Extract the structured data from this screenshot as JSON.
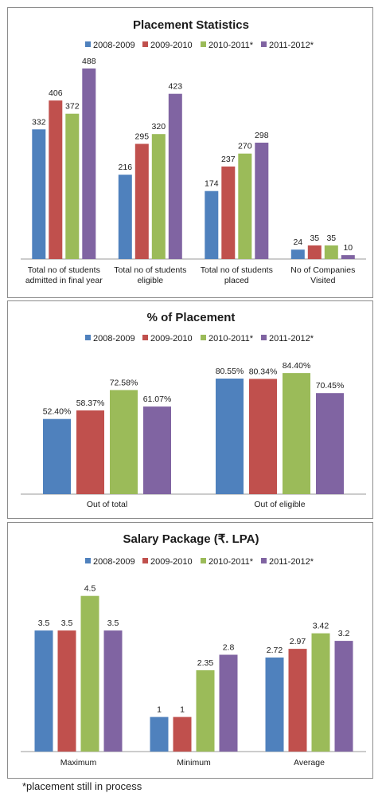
{
  "colors": [
    "#4f81bd",
    "#c0504d",
    "#9bbb59",
    "#8064a2"
  ],
  "footnote": "*placement still in process",
  "chart_data": [
    {
      "type": "bar",
      "title": "Placement Statistics",
      "legend_position": "top",
      "series": [
        {
          "name": "2008-2009",
          "values": [
            332,
            216,
            174,
            24
          ]
        },
        {
          "name": "2009-2010",
          "values": [
            406,
            295,
            237,
            35
          ]
        },
        {
          "name": "2010-2011*",
          "values": [
            372,
            320,
            270,
            35
          ]
        },
        {
          "name": "2011-2012*",
          "values": [
            488,
            423,
            298,
            10
          ]
        }
      ],
      "categories": [
        [
          "Total no of students",
          "admitted in final year"
        ],
        [
          "Total no of students",
          "eligible"
        ],
        [
          "Total no of students",
          "placed"
        ],
        [
          "No of Companies",
          "Visited"
        ]
      ],
      "labels": [
        [
          "332",
          "216",
          "174",
          "24"
        ],
        [
          "406",
          "295",
          "237",
          "35"
        ],
        [
          "372",
          "320",
          "270",
          "35"
        ],
        [
          "488",
          "423",
          "298",
          "10"
        ]
      ],
      "ylim": [
        0,
        500
      ],
      "grid": false
    },
    {
      "type": "bar",
      "title": "% of Placement",
      "legend_position": "top",
      "series": [
        {
          "name": "2008-2009",
          "values": [
            52.4,
            80.55
          ]
        },
        {
          "name": "2009-2010",
          "values": [
            58.37,
            80.34
          ]
        },
        {
          "name": "2010-2011*",
          "values": [
            72.58,
            84.4
          ]
        },
        {
          "name": "2011-2012*",
          "values": [
            61.07,
            70.45
          ]
        }
      ],
      "categories": [
        [
          "Out of total"
        ],
        [
          "Out of eligible"
        ]
      ],
      "labels": [
        [
          "52.40%",
          "80.55%"
        ],
        [
          "58.37%",
          "80.34%"
        ],
        [
          "72.58%",
          "84.40%"
        ],
        [
          "61.07%",
          "70.45%"
        ]
      ],
      "ylim": [
        0,
        100
      ],
      "grid": false
    },
    {
      "type": "bar",
      "title": "Salary Package  (₹. LPA)",
      "legend_position": "top",
      "series": [
        {
          "name": "2008-2009",
          "values": [
            3.5,
            1,
            2.72
          ]
        },
        {
          "name": "2009-2010",
          "values": [
            3.5,
            1,
            2.97
          ]
        },
        {
          "name": "2010-2011*",
          "values": [
            4.5,
            2.35,
            3.42
          ]
        },
        {
          "name": "2011-2012*",
          "values": [
            3.5,
            2.8,
            3.2
          ]
        }
      ],
      "categories": [
        [
          "Maximum"
        ],
        [
          "Minimum"
        ],
        [
          "Average"
        ]
      ],
      "labels": [
        [
          "3.5",
          "1",
          "2.72"
        ],
        [
          "3.5",
          "1",
          "2.97"
        ],
        [
          "4.5",
          "2.35",
          "3.42"
        ],
        [
          "3.5",
          "2.8",
          "3.2"
        ]
      ],
      "ylim": [
        0,
        5
      ],
      "grid": false
    }
  ]
}
